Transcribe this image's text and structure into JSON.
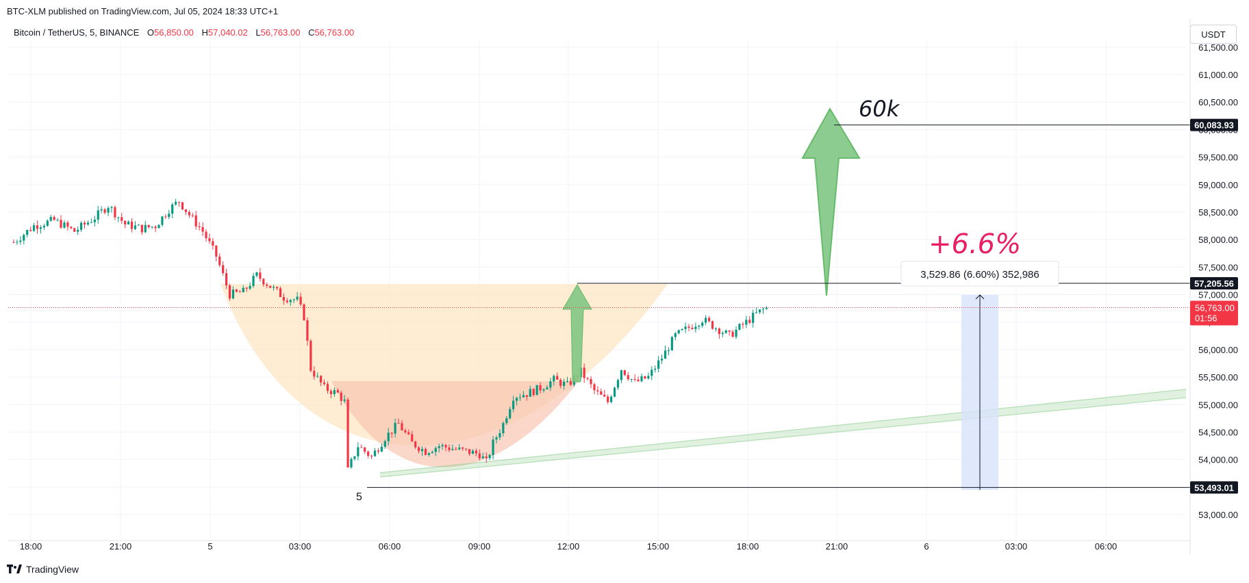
{
  "published_line": "BTC-XLM published on TradingView.com, Jul 05, 2024 18:33 UTC+1",
  "watermark": "TradingView",
  "currency_button": "USDT",
  "legend": {
    "symbol": "Bitcoin / TetherUS, 5, BINANCE",
    "o_label": "O",
    "o_value": "56,850.00",
    "h_label": "H",
    "h_value": "57,040.02",
    "l_label": "L",
    "l_value": "56,763.00",
    "c_label": "C",
    "c_value": "56,763.00"
  },
  "colors": {
    "up": "#089981",
    "down": "#f23645",
    "accent_text": "#e91e63",
    "cup_outer": "#fde6c4",
    "cup_inner": "#f8c6b0",
    "arrow": "#81c784",
    "range_box": "#d8e2fb"
  },
  "chart_data": {
    "type": "candlestick",
    "x_tick_labels": [
      "18:00",
      "21:00",
      "5",
      "03:00",
      "06:00",
      "09:00",
      "12:00",
      "15:00",
      "18:00",
      "21:00",
      "6",
      "03:00",
      "06:00"
    ],
    "y_tick_labels": [
      "61,500.00",
      "61,000.00",
      "60,500.00",
      "60,000.00",
      "59,500.00",
      "59,000.00",
      "58,500.00",
      "58,000.00",
      "57,500.00",
      "57,000.00",
      "56,500.00",
      "56,000.00",
      "55,500.00",
      "55,000.00",
      "54,500.00",
      "54,000.00",
      "53,500.00",
      "53,000.00"
    ],
    "ylim": [
      52600,
      61500
    ],
    "price_path": [
      [
        0,
        57950
      ],
      [
        6,
        58250
      ],
      [
        12,
        58350
      ],
      [
        18,
        58150
      ],
      [
        24,
        58400
      ],
      [
        28,
        58620
      ],
      [
        33,
        58280
      ],
      [
        38,
        58200
      ],
      [
        42,
        58250
      ],
      [
        46,
        58550
      ],
      [
        49,
        58700
      ],
      [
        52,
        58450
      ],
      [
        56,
        58150
      ],
      [
        60,
        57700
      ],
      [
        62,
        57350
      ],
      [
        64,
        57000
      ],
      [
        68,
        57050
      ],
      [
        72,
        57350
      ],
      [
        76,
        57150
      ],
      [
        80,
        56950
      ],
      [
        84,
        56900
      ],
      [
        86,
        56600
      ],
      [
        88,
        55650
      ],
      [
        92,
        55300
      ],
      [
        96,
        55200
      ],
      [
        98,
        55050
      ],
      [
        99,
        53800
      ],
      [
        102,
        54250
      ],
      [
        106,
        54050
      ],
      [
        110,
        54400
      ],
      [
        114,
        54650
      ],
      [
        118,
        54300
      ],
      [
        122,
        54150
      ],
      [
        126,
        54250
      ],
      [
        130,
        54200
      ],
      [
        134,
        54150
      ],
      [
        138,
        54100
      ],
      [
        140,
        53950
      ],
      [
        142,
        54300
      ],
      [
        145,
        54650
      ],
      [
        148,
        55150
      ],
      [
        152,
        55200
      ],
      [
        156,
        55300
      ],
      [
        160,
        55450
      ],
      [
        164,
        55350
      ],
      [
        168,
        55600
      ],
      [
        172,
        55250
      ],
      [
        176,
        55050
      ],
      [
        180,
        55650
      ],
      [
        184,
        55400
      ],
      [
        188,
        55500
      ],
      [
        192,
        55850
      ],
      [
        196,
        56250
      ],
      [
        200,
        56400
      ],
      [
        204,
        56550
      ],
      [
        208,
        56400
      ],
      [
        212,
        56250
      ],
      [
        216,
        56450
      ],
      [
        220,
        56650
      ],
      [
        223,
        56763
      ]
    ],
    "last_price": "56,763.00",
    "countdown": "01:56",
    "levels": [
      {
        "price": 60083.93,
        "label": "60,083.93"
      },
      {
        "price": 57205.56,
        "label": "57,205.56"
      },
      {
        "price": 53493.01,
        "label": "53,493.01"
      }
    ],
    "annotations": {
      "target_text": "60k",
      "pct_text": "+6.6%",
      "measure_text": "3,529.86 (6.60%) 352,986",
      "session_marker": "5"
    }
  }
}
